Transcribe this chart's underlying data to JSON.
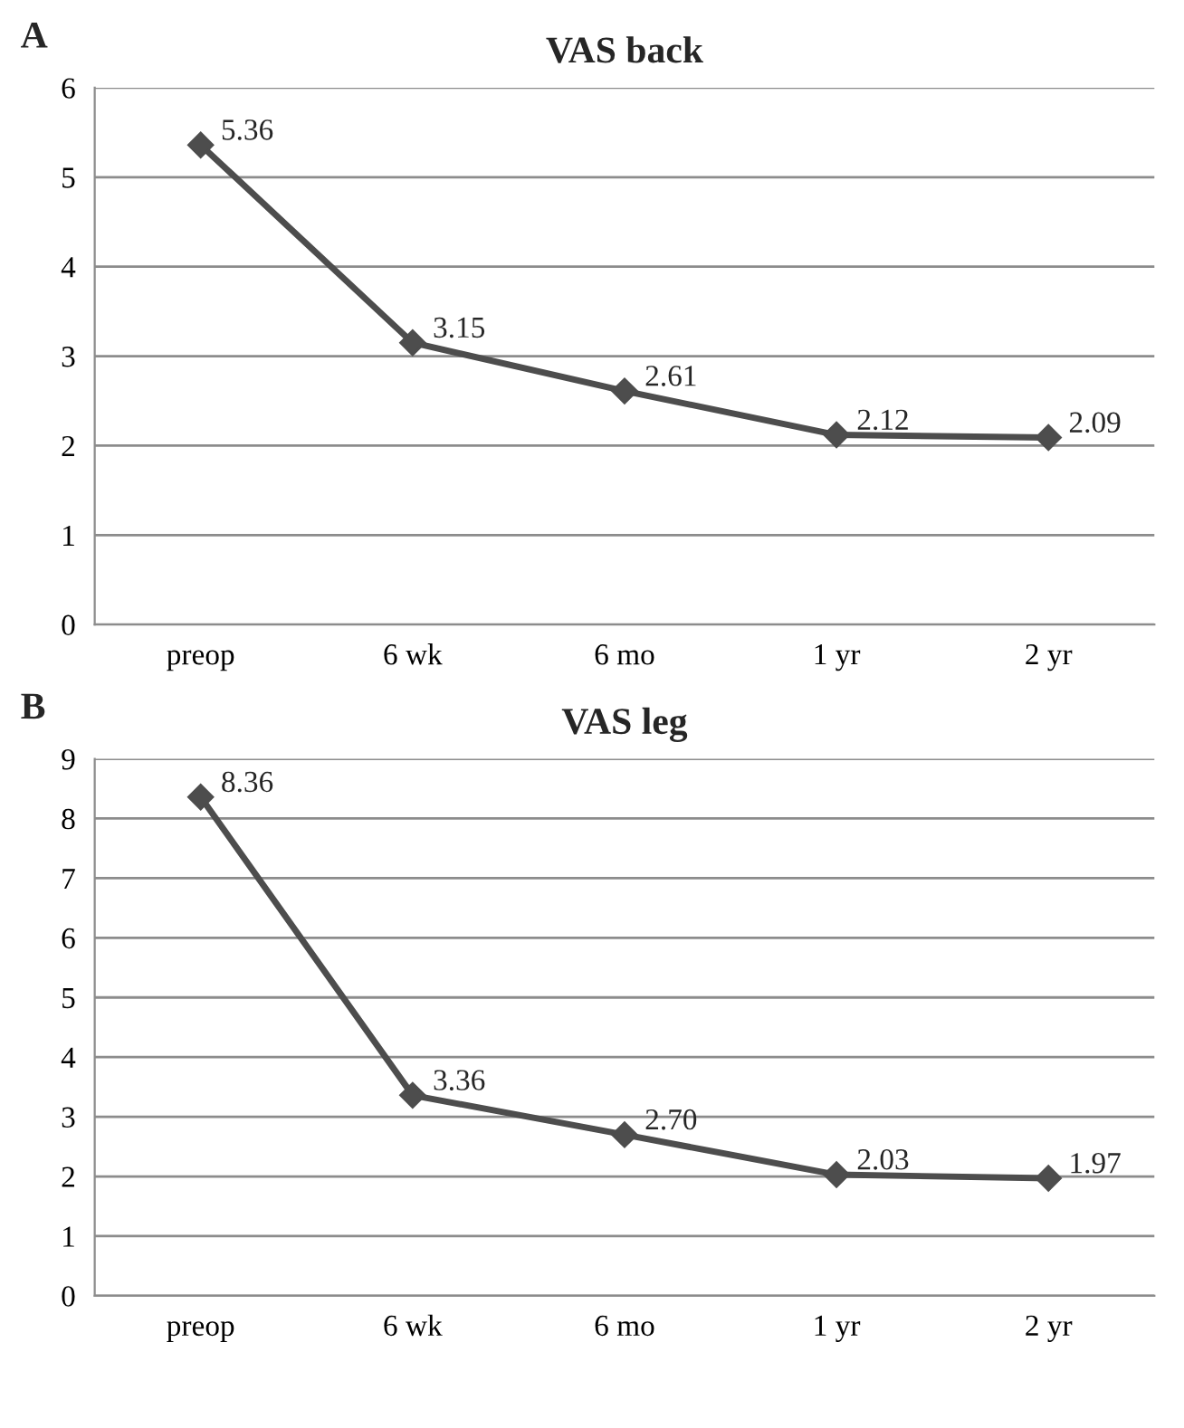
{
  "chart_data": [
    {
      "type": "line",
      "title": "VAS back",
      "annotations": [
        "A"
      ],
      "categories": [
        "preop",
        "6 wk",
        "6 mo",
        "1 yr",
        "2 yr"
      ],
      "series": [
        {
          "color": "#4d4d4d",
          "values": [
            5.36,
            3.15,
            2.61,
            2.12,
            2.09
          ],
          "value_labels": [
            "5.36",
            "3.15",
            "2.61",
            "2.12",
            "2.09"
          ]
        }
      ],
      "ylim": [
        0,
        6
      ],
      "yticks": [
        0,
        1,
        2,
        3,
        4,
        5,
        6
      ],
      "grid": "y",
      "legend": false,
      "marker": "diamond",
      "line_style": "solid"
    },
    {
      "type": "line",
      "title": "VAS leg",
      "annotations": [
        "B"
      ],
      "categories": [
        "preop",
        "6 wk",
        "6 mo",
        "1 yr",
        "2 yr"
      ],
      "series": [
        {
          "color": "#4d4d4d",
          "values": [
            8.36,
            3.36,
            2.7,
            2.03,
            1.97
          ],
          "value_labels": [
            "8.36",
            "3.36",
            "2.70",
            "2.03",
            "1.97"
          ]
        }
      ],
      "ylim": [
        0,
        9
      ],
      "yticks": [
        0,
        1,
        2,
        3,
        4,
        5,
        6,
        7,
        8,
        9
      ],
      "grid": "y",
      "legend": false,
      "marker": "diamond",
      "line_style": "solid"
    }
  ]
}
